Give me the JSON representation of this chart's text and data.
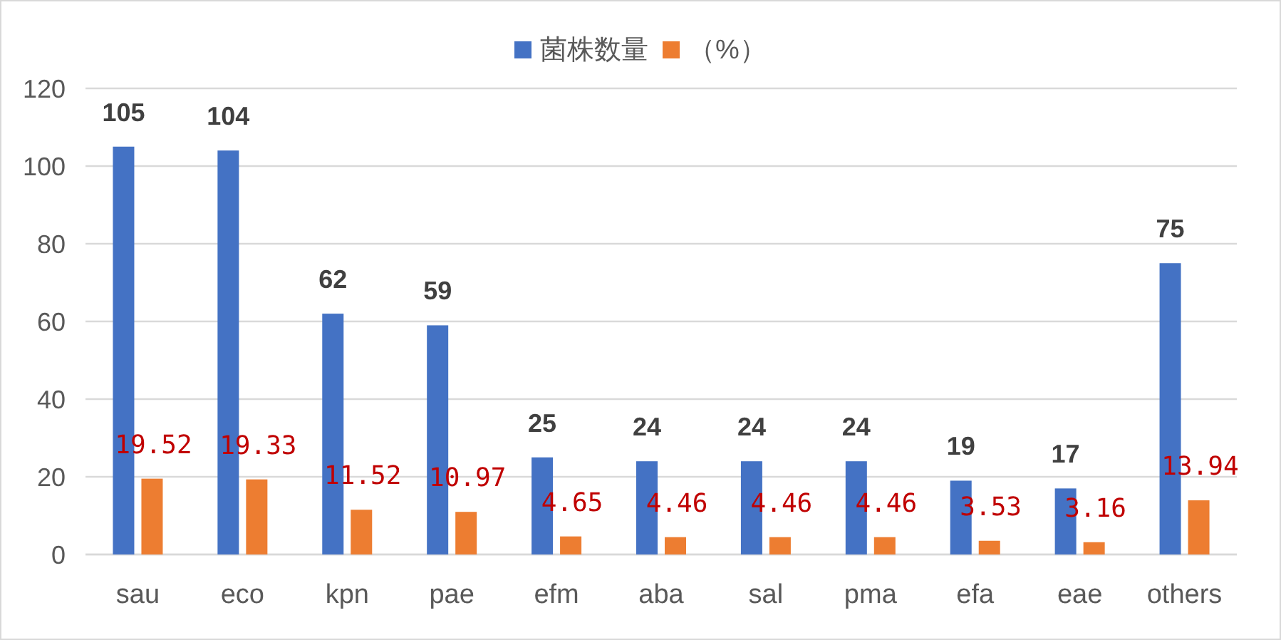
{
  "chart_data": {
    "type": "bar",
    "categories": [
      "sau",
      "eco",
      "kpn",
      "pae",
      "efm",
      "aba",
      "sal",
      "pma",
      "efa",
      "eae",
      "others"
    ],
    "series": [
      {
        "name": "菌株数量",
        "color": "#4472c4",
        "values": [
          105,
          104,
          62,
          59,
          25,
          24,
          24,
          24,
          19,
          17,
          75
        ]
      },
      {
        "name": "（%）",
        "color": "#ed7d31",
        "values": [
          19.52,
          19.33,
          11.52,
          10.97,
          4.65,
          4.46,
          4.46,
          4.46,
          3.53,
          3.16,
          13.94
        ]
      }
    ],
    "ylim": [
      0,
      120
    ],
    "yticks": [
      0,
      20,
      40,
      60,
      80,
      100,
      120
    ],
    "grid": "y",
    "legend": "top",
    "data_labels": true
  }
}
